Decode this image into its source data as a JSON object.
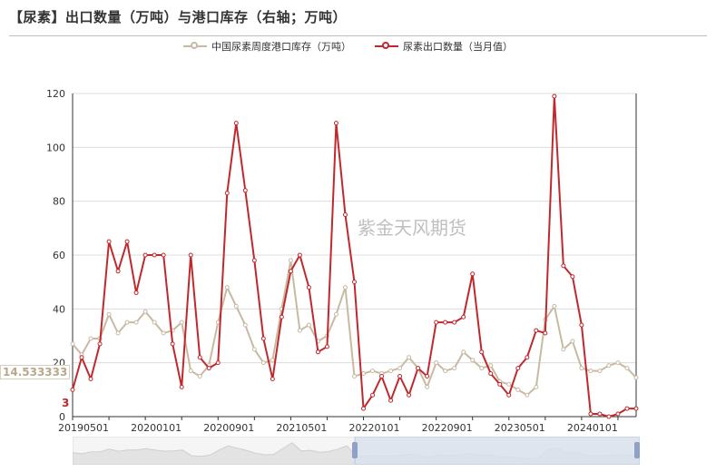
{
  "title": "【尿素】出口数量（万吨）与港口库存（右轴；万吨）",
  "watermark": "紫金天风期货",
  "pointers": {
    "left_value": "14.533333",
    "left_value_small": "3"
  },
  "colors": {
    "inventory": "#c8baa2",
    "exports": "#c0282d",
    "grid": "#dcdcdc",
    "zoom_selected": "#dae1ec",
    "zoom_handle": "#7f93b8"
  },
  "chart_data": {
    "type": "line",
    "title": "【尿素】出口数量（万吨）与港口库存（右轴；万吨）",
    "ylim": [
      0,
      120
    ],
    "yticks": [
      0,
      20,
      40,
      60,
      80,
      100,
      120
    ],
    "x_tick_labels": [
      "20190501",
      "20200101",
      "20200901",
      "20210501",
      "20220101",
      "20220901",
      "20230501",
      "20240101"
    ],
    "x_tick_index": [
      0,
      8,
      16,
      24,
      32,
      40,
      48,
      56
    ],
    "grid": "horizontal",
    "legend_position": "top-center",
    "series": [
      {
        "name": "中国尿素周度港口库存（万吨）",
        "color": "#c8baa2",
        "values": [
          27,
          23,
          29,
          29,
          38,
          31,
          35,
          35,
          39,
          35,
          31,
          32,
          35,
          17,
          15,
          19,
          35,
          48,
          41,
          34,
          25,
          20,
          21,
          40,
          58,
          32,
          34,
          28,
          30,
          38,
          48,
          15,
          16,
          17,
          16,
          17,
          18,
          22,
          18,
          11,
          20,
          17,
          18,
          24,
          21,
          18,
          19,
          13,
          12,
          10,
          8,
          11,
          36,
          41,
          25,
          28,
          18,
          17,
          17,
          19,
          20,
          18,
          14.5
        ]
      },
      {
        "name": "尿素出口数量（当月值）",
        "color": "#c0282d",
        "values": [
          10,
          22,
          14,
          27,
          65,
          54,
          65,
          46,
          60,
          60,
          60,
          27,
          11,
          60,
          22,
          18,
          20,
          83,
          109,
          84,
          58,
          29,
          14,
          37,
          54,
          60,
          48,
          24,
          26,
          109,
          75,
          50,
          3,
          8,
          15,
          6,
          15,
          8,
          18,
          15,
          35,
          35,
          35,
          37,
          53,
          24,
          16,
          12,
          8,
          18,
          22,
          32,
          31,
          119,
          56,
          52,
          34,
          1,
          1,
          0,
          1,
          3,
          3
        ]
      }
    ]
  },
  "legend": [
    {
      "label": "中国尿素周度港口库存（万吨）"
    },
    {
      "label": "尿素出口数量（当月值）"
    }
  ]
}
